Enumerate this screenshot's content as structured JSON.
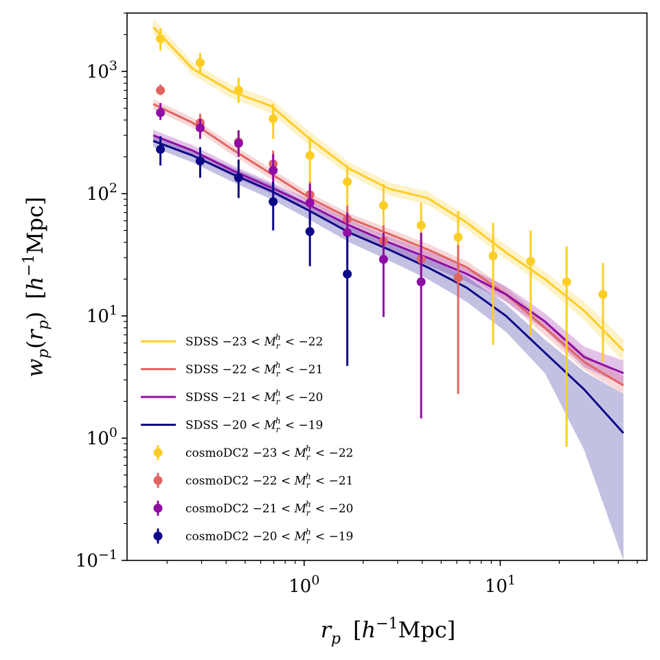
{
  "chart_data": {
    "type": "line",
    "title": "",
    "xscale": "log",
    "yscale": "log",
    "xlim": [
      0.125,
      56
    ],
    "ylim": [
      0.1,
      3000
    ],
    "xlabel": "r_p  [h^-1 Mpc]",
    "ylabel": "w_p(r_p)  [h^-1 Mpc]",
    "xlabel_parts": {
      "var": "r",
      "sub": "p",
      "unit_open": "[",
      "h": "h",
      "exp": "−1",
      "unit": "Mpc]"
    },
    "ylabel_parts": {
      "func": "w",
      "sub": "p",
      "arg_open": "(",
      "arg": "r",
      "arg_sub": "p",
      "arg_close": ")",
      "unit_open": "[",
      "h": "h",
      "exp": "−1",
      "unit": "Mpc]"
    },
    "x_ticks": [
      {
        "value": 1,
        "base": "10",
        "exp": "0"
      },
      {
        "value": 10,
        "base": "10",
        "exp": "1"
      }
    ],
    "y_ticks": [
      {
        "value": 0.1,
        "base": "10",
        "exp": "−1"
      },
      {
        "value": 1,
        "base": "10",
        "exp": "0"
      },
      {
        "value": 10,
        "base": "10",
        "exp": "1"
      },
      {
        "value": 100,
        "base": "10",
        "exp": "2"
      },
      {
        "value": 1000,
        "base": "10",
        "exp": "3"
      }
    ],
    "legend_position": "lower-left",
    "sdss_x": [
      0.17,
      0.27,
      0.43,
      0.68,
      1.07,
      1.7,
      2.69,
      4.26,
      6.75,
      10.7,
      16.9,
      26.8,
      42.5
    ],
    "lines": [
      {
        "name": "SDSS −23<M_r^h<−22",
        "prefix": "SDSS",
        "color": "#fccd25",
        "y": [
          2300,
          1050,
          680,
          520,
          280,
          160,
          110,
          92,
          58,
          33,
          20,
          11,
          5.2
        ],
        "band_lo": [
          2050,
          930,
          600,
          455,
          245,
          142,
          97,
          81,
          51,
          29,
          17.5,
          9.2,
          4.2
        ],
        "band_hi": [
          2700,
          1180,
          770,
          590,
          320,
          180,
          124,
          104,
          66,
          38,
          23,
          13,
          6.4
        ]
      },
      {
        "name": "SDSS −22<M_r^h<−21",
        "prefix": "SDSS",
        "color": "#e16462",
        "y": [
          540,
          380,
          230,
          145,
          92,
          63,
          47,
          35,
          25,
          15,
          8,
          4.2,
          2.7
        ],
        "band_lo": [
          490,
          345,
          208,
          131,
          83,
          57,
          42,
          31,
          22,
          13.2,
          6.9,
          3.6,
          2.3
        ],
        "band_hi": [
          595,
          418,
          253,
          160,
          101,
          69,
          52,
          39,
          28,
          17,
          9.2,
          4.9,
          3.2
        ]
      },
      {
        "name": "SDSS −21<M_r^h<−20",
        "prefix": "SDSS",
        "color": "#8f0da4",
        "y": [
          300,
          225,
          155,
          112,
          80,
          55,
          40,
          30,
          22,
          15,
          9,
          4.6,
          3.4
        ],
        "band_lo": [
          270,
          202,
          139,
          100,
          71,
          49,
          35,
          26,
          19,
          13,
          7.7,
          3.8,
          2.7
        ],
        "band_hi": [
          332,
          249,
          171,
          124,
          89,
          61,
          45,
          34,
          25,
          17.5,
          10.5,
          5.6,
          4.3
        ]
      },
      {
        "name": "SDSS −20<M_r^h<−19",
        "prefix": "SDSS",
        "color": "#0d0887",
        "y": [
          270,
          205,
          145,
          105,
          72,
          48,
          35,
          25,
          17,
          10,
          5,
          2.5,
          1.1
        ],
        "band_lo": [
          240,
          180,
          125,
          90,
          61,
          40,
          28.5,
          20,
          13,
          7.4,
          3.4,
          0.8,
          0.1
        ],
        "band_hi": [
          300,
          228,
          163,
          119,
          82,
          55,
          41,
          30,
          21,
          12.5,
          6.4,
          3.5,
          2.3
        ]
      }
    ],
    "points": [
      {
        "name": "cosmoDC2 −23<M_r^h<−22",
        "prefix": "cosmoDC2",
        "color": "#fccd25",
        "x": [
          0.185,
          0.295,
          0.463,
          0.695,
          1.07,
          1.66,
          2.54,
          3.95,
          6.1,
          9.2,
          14.3,
          21.8,
          33.4
        ],
        "y": [
          1850,
          1180,
          700,
          410,
          205,
          125,
          80,
          55,
          44,
          31,
          28,
          19,
          15
        ],
        "lo": [
          1480,
          980,
          550,
          280,
          120,
          80,
          48,
          28,
          20,
          5.8,
          6.8,
          0.85,
          4.2
        ],
        "hi": [
          2250,
          1420,
          890,
          540,
          290,
          170,
          120,
          85,
          72,
          58,
          50,
          37,
          27
        ]
      },
      {
        "name": "cosmoDC2 −22<M_r^h<−21",
        "prefix": "cosmoDC2",
        "color": "#e16462",
        "x": [
          0.185,
          0.295,
          0.463,
          0.695,
          1.07,
          1.66,
          2.54,
          3.95,
          6.1
        ],
        "y": [
          700,
          380,
          265,
          175,
          98,
          62,
          41,
          29,
          20.5
        ],
        "lo": [
          640,
          320,
          215,
          130,
          73,
          45,
          30,
          18,
          2.3
        ],
        "hi": [
          780,
          450,
          325,
          225,
          125,
          80,
          55,
          42,
          38
        ]
      },
      {
        "name": "cosmoDC2 −21<M_r^h<−20",
        "prefix": "cosmoDC2",
        "color": "#8f0da4",
        "x": [
          0.185,
          0.295,
          0.463,
          0.695,
          1.07,
          1.66,
          2.54,
          3.95
        ],
        "y": [
          460,
          345,
          258,
          155,
          84,
          48,
          29,
          19
        ],
        "lo": [
          400,
          280,
          200,
          110,
          55,
          27,
          9.8,
          1.45
        ],
        "hi": [
          550,
          410,
          330,
          210,
          120,
          70,
          48,
          48
        ]
      },
      {
        "name": "cosmoDC2 −20<M_r^h<−19",
        "prefix": "cosmoDC2",
        "color": "#0d0887",
        "x": [
          0.185,
          0.295,
          0.463,
          0.695,
          1.07,
          1.66
        ],
        "y": [
          230,
          185,
          135,
          86,
          49,
          22
        ],
        "lo": [
          170,
          135,
          92,
          50,
          25.5,
          3.9
        ],
        "hi": [
          295,
          240,
          190,
          125,
          73,
          45
        ]
      }
    ]
  }
}
